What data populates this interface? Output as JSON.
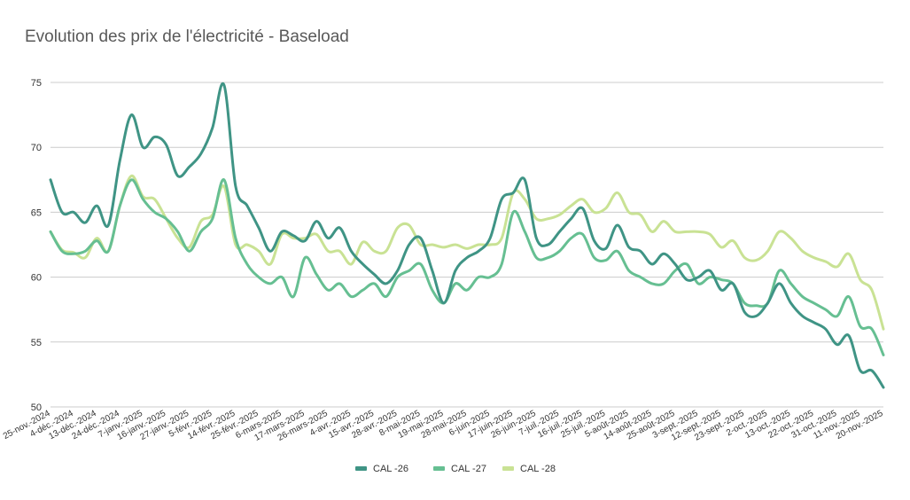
{
  "chart_data": {
    "type": "line",
    "title": "Evolution des prix de l'électricité - Baseload",
    "xlabel": "",
    "ylabel": "",
    "ylim": [
      50,
      75
    ],
    "yticks": [
      50,
      55,
      60,
      65,
      70,
      75
    ],
    "grid": true,
    "legend_position": "bottom",
    "x_tick_labels": [
      "25-nov.-2024",
      "4-déc.-2024",
      "13-déc.-2024",
      "24-déc.-2024",
      "7-janv.-2025",
      "16-janv.-2025",
      "27-janv.-2025",
      "5-févr.-2025",
      "14-févr.-2025",
      "25-févr.-2025",
      "6-mars-2025",
      "17-mars-2025",
      "26-mars-2025",
      "4-avr.-2025",
      "15-avr.-2025",
      "28-avr.-2025",
      "8-mai-2025",
      "19-mai-2025",
      "28-mai-2025",
      "6-juin-2025",
      "17-juin-2025",
      "26-juin-2025",
      "7-juil.-2025",
      "16-juil.-2025",
      "25-juil.-2025",
      "5-août-2025",
      "14-août-2025",
      "25-août-2025",
      "3-sept.-2025",
      "12-sept.-2025",
      "23-sept.-2025",
      "2-oct.-2025",
      "13-oct.-2025",
      "22-oct.-2025",
      "31-oct.-2025",
      "11-nov.-2025",
      "20-nov.-2025"
    ],
    "x": [
      "2024-11-25",
      "2024-11-28",
      "2024-12-04",
      "2024-12-09",
      "2024-12-13",
      "2024-12-18",
      "2024-12-24",
      "2024-12-31",
      "2025-01-07",
      "2025-01-10",
      "2025-01-16",
      "2025-01-21",
      "2025-01-27",
      "2025-01-30",
      "2025-02-05",
      "2025-02-10",
      "2025-02-14",
      "2025-02-19",
      "2025-02-25",
      "2025-02-28",
      "2025-03-06",
      "2025-03-11",
      "2025-03-17",
      "2025-03-20",
      "2025-03-26",
      "2025-03-31",
      "2025-04-04",
      "2025-04-09",
      "2025-04-15",
      "2025-04-22",
      "2025-04-28",
      "2025-05-02",
      "2025-05-08",
      "2025-05-13",
      "2025-05-19",
      "2025-05-22",
      "2025-05-28",
      "2025-06-02",
      "2025-06-06",
      "2025-06-11",
      "2025-06-17",
      "2025-06-20",
      "2025-06-26",
      "2025-07-01",
      "2025-07-07",
      "2025-07-10",
      "2025-07-16",
      "2025-07-21",
      "2025-07-25",
      "2025-07-30",
      "2025-08-05",
      "2025-08-08",
      "2025-08-14",
      "2025-08-19",
      "2025-08-25",
      "2025-08-28",
      "2025-09-03",
      "2025-09-08",
      "2025-09-12",
      "2025-09-17",
      "2025-09-23",
      "2025-09-26",
      "2025-10-02",
      "2025-10-07",
      "2025-10-13",
      "2025-10-16",
      "2025-10-22",
      "2025-10-27",
      "2025-10-31",
      "2025-11-05",
      "2025-11-11",
      "2025-11-14",
      "2025-11-20"
    ],
    "series": [
      {
        "name": "CAL -26",
        "color": "#3f9485",
        "values": [
          67.5,
          65.0,
          65.0,
          64.2,
          65.5,
          64.0,
          69.0,
          72.5,
          70.0,
          70.8,
          70.2,
          67.8,
          68.5,
          69.5,
          71.5,
          74.8,
          67.0,
          65.5,
          63.8,
          62.0,
          63.5,
          63.2,
          62.8,
          64.3,
          63.0,
          63.8,
          62.0,
          61.0,
          60.2,
          59.5,
          60.5,
          62.5,
          63.0,
          60.5,
          58.0,
          60.5,
          61.5,
          62.0,
          63.0,
          66.0,
          66.5,
          67.5,
          63.0,
          62.5,
          63.5,
          64.5,
          65.3,
          62.8,
          62.2,
          64.0,
          62.3,
          62.0,
          61.0,
          61.8,
          61.0,
          59.8,
          60.0,
          60.5,
          59.0,
          59.5,
          57.3,
          57.0,
          58.0,
          59.5,
          58.0,
          57.0,
          56.5,
          56.0,
          54.8,
          55.5,
          52.8,
          52.8,
          51.5
        ]
      },
      {
        "name": "CAL -27",
        "color": "#66bf92",
        "values": [
          63.5,
          62.0,
          61.8,
          62.0,
          62.8,
          62.0,
          65.5,
          67.5,
          66.0,
          65.0,
          64.5,
          63.5,
          62.0,
          63.5,
          64.5,
          67.5,
          63.0,
          61.0,
          60.0,
          59.5,
          60.0,
          58.5,
          61.5,
          60.2,
          59.0,
          59.5,
          58.5,
          59.0,
          59.5,
          58.5,
          60.0,
          60.5,
          61.0,
          59.0,
          58.0,
          59.5,
          59.0,
          60.0,
          60.0,
          61.0,
          65.0,
          63.5,
          61.5,
          61.5,
          62.0,
          63.0,
          63.3,
          61.5,
          61.3,
          62.0,
          60.5,
          60.0,
          59.5,
          59.5,
          60.5,
          61.0,
          59.5,
          60.0,
          59.8,
          59.5,
          58.0,
          57.8,
          58.0,
          60.5,
          59.5,
          58.5,
          58.0,
          57.5,
          57.0,
          58.5,
          56.2,
          56.0,
          54.0
        ]
      },
      {
        "name": "CAL -28",
        "color": "#c9e294",
        "values": [
          63.5,
          62.1,
          61.9,
          61.5,
          63.0,
          62.0,
          65.5,
          67.8,
          66.2,
          66.0,
          64.5,
          63.0,
          62.3,
          64.3,
          64.8,
          67.0,
          62.5,
          62.5,
          62.0,
          61.0,
          63.3,
          63.0,
          63.0,
          63.3,
          62.0,
          62.0,
          61.0,
          62.7,
          62.0,
          62.0,
          63.8,
          64.0,
          62.5,
          62.5,
          62.3,
          62.5,
          62.2,
          62.5,
          62.5,
          63.0,
          66.5,
          66.0,
          64.5,
          64.5,
          64.8,
          65.5,
          66.0,
          65.0,
          65.3,
          66.5,
          65.0,
          64.8,
          63.5,
          64.3,
          63.5,
          63.5,
          63.5,
          63.3,
          62.3,
          62.8,
          61.5,
          61.3,
          62.0,
          63.5,
          63.0,
          62.0,
          61.5,
          61.2,
          60.8,
          61.8,
          59.8,
          59.0,
          56.0
        ]
      }
    ]
  }
}
